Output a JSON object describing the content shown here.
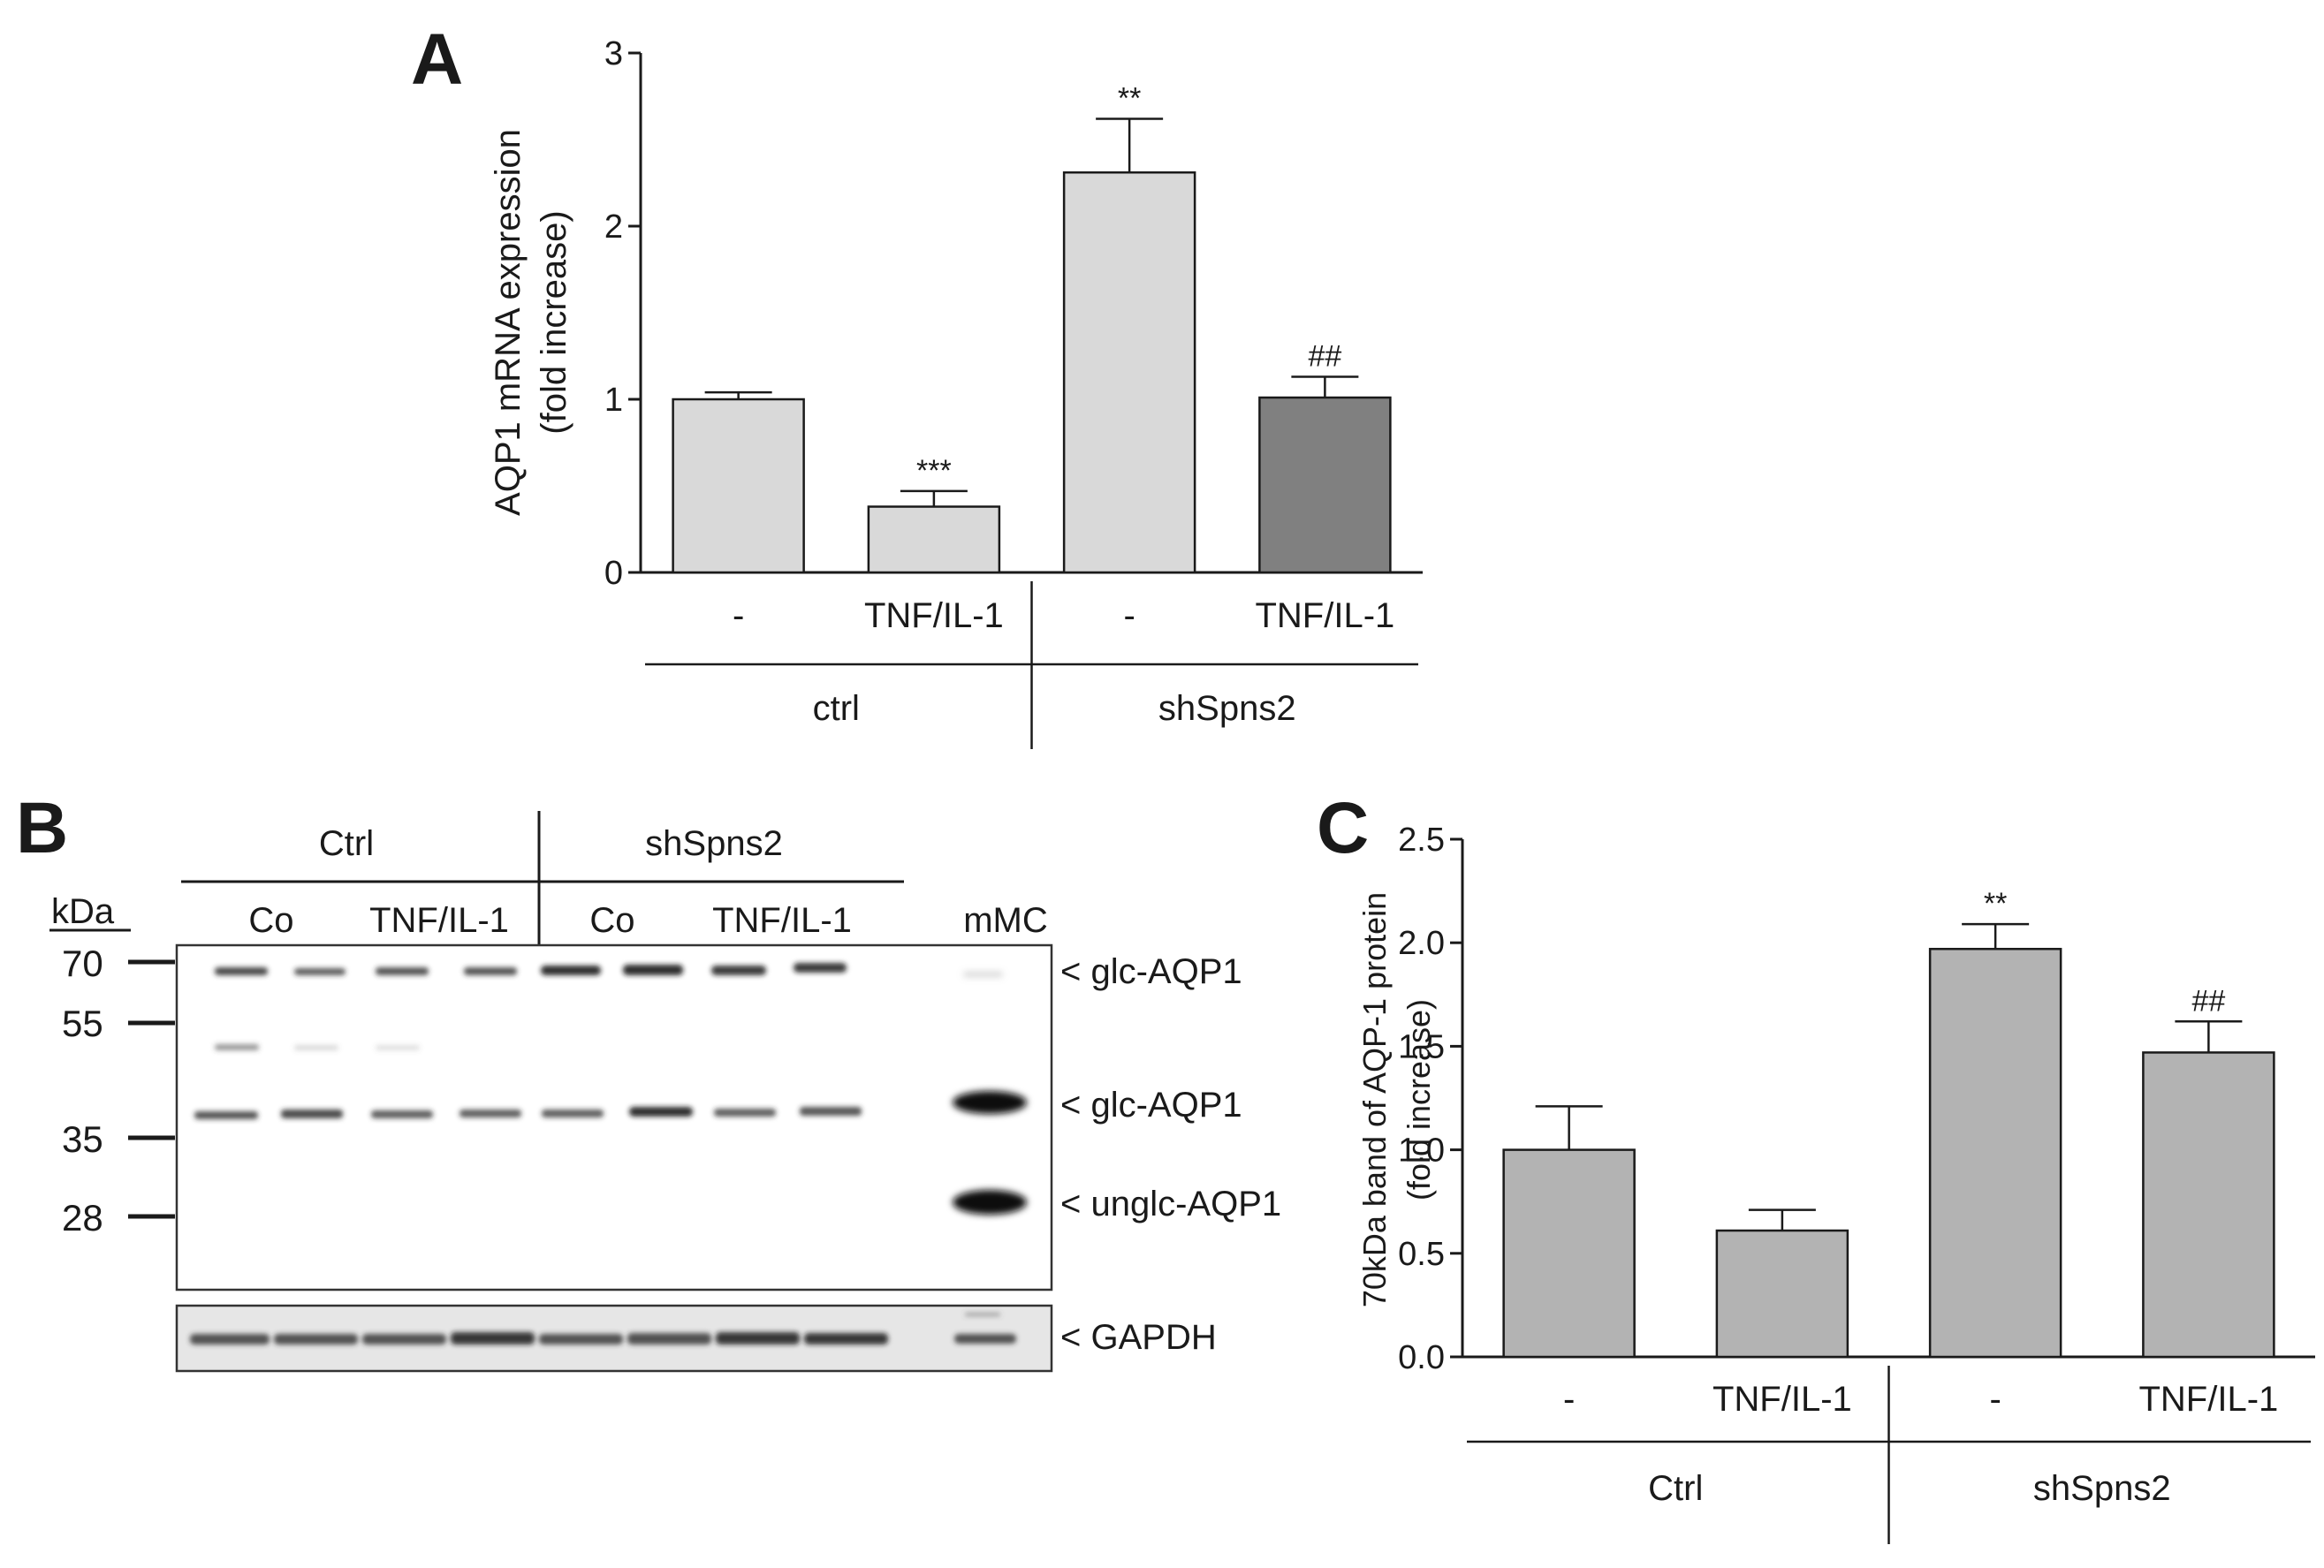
{
  "chart_data": [
    {
      "panel": "A",
      "type": "bar",
      "title": "",
      "xlabel": "",
      "ylabel": "AQP1 mRNA expression",
      "ylabel2": "(fold increase)",
      "ylim": [
        0,
        3
      ],
      "yticks": [
        "0",
        "1",
        "2",
        "3"
      ],
      "categories": [
        "-",
        "TNF/IL-1",
        "-",
        "TNF/IL-1"
      ],
      "groups": [
        "ctrl",
        "shSpns2"
      ],
      "values": [
        1.0,
        0.38,
        2.31,
        1.01
      ],
      "errors": [
        0.04,
        0.09,
        0.31,
        0.12
      ],
      "significance": [
        "",
        "***",
        "**",
        "##"
      ],
      "bar_colors": [
        "#d9d9d9",
        "#d9d9d9",
        "#d9d9d9",
        "#808080"
      ]
    },
    {
      "panel": "C",
      "type": "bar",
      "title": "",
      "xlabel": "",
      "ylabel": "70kDa band of AQP-1 protein",
      "ylabel2": "(fold increase)",
      "ylim": [
        0,
        2.5
      ],
      "yticks": [
        "0.0",
        "0.5",
        "1.0",
        "1.5",
        "2.0",
        "2.5"
      ],
      "categories": [
        "-",
        "TNF/IL-1",
        "-",
        "TNF/IL-1"
      ],
      "groups": [
        "Ctrl",
        "shSpns2"
      ],
      "values": [
        1.0,
        0.61,
        1.97,
        1.47
      ],
      "errors": [
        0.21,
        0.1,
        0.12,
        0.15
      ],
      "significance": [
        "",
        "",
        "**",
        "##"
      ],
      "bar_colors": [
        "#b3b3b3",
        "#b3b3b3",
        "#b3b3b3",
        "#b3b3b3"
      ]
    }
  ],
  "blot": {
    "panel": "B",
    "groups": [
      "Ctrl",
      "shSpns2"
    ],
    "lanes": [
      "Co",
      "TNF/IL-1",
      "Co",
      "TNF/IL-1"
    ],
    "control_lane": "mMC",
    "unit_label": "kDa",
    "markers": [
      "70",
      "55",
      "35",
      "28"
    ],
    "band_labels": [
      "< glc-AQP1",
      "< glc-AQP1",
      "< unglc-AQP1",
      "< GAPDH"
    ]
  }
}
